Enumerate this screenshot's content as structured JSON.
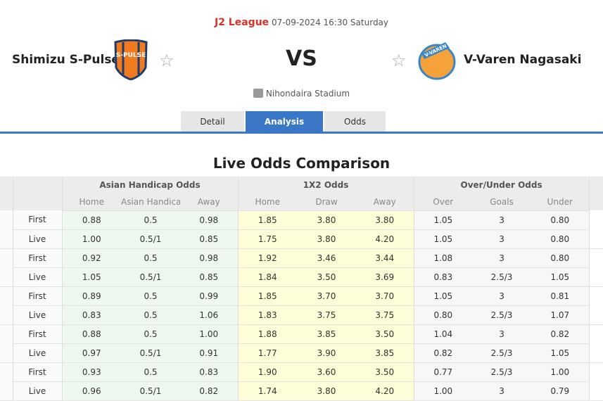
{
  "match": {
    "league": "J2 League",
    "datetime": "07-09-2024 16:30 Saturday",
    "home_team": "Shimizu S-Pulse",
    "away_team": "V-Varen Nagasaki",
    "vs": "VS",
    "venue": "Nihondaira Stadium",
    "home_logo_text": "S-PULSE",
    "away_logo_text": "V-VAREN"
  },
  "tabs": [
    {
      "label": "Detail",
      "active": false
    },
    {
      "label": "Analysis",
      "active": true
    },
    {
      "label": "Odds",
      "active": false
    }
  ],
  "section_title": "Live Odds Comparison",
  "table": {
    "groups": [
      "Asian Handicap Odds",
      "1X2 Odds",
      "Over/Under Odds"
    ],
    "subheaders": [
      "Home",
      "Asian Handicap",
      "Away",
      "Home",
      "Draw",
      "Away",
      "Over",
      "Goals",
      "Under"
    ],
    "rows": [
      [
        "First",
        "0.88",
        "0.5",
        "0.98",
        "1.85",
        "3.80",
        "3.80",
        "1.05",
        "3",
        "0.80"
      ],
      [
        "Live",
        "1.00",
        "0.5/1",
        "0.85",
        "1.75",
        "3.80",
        "4.20",
        "1.05",
        "3",
        "0.80"
      ],
      [
        "First",
        "0.92",
        "0.5",
        "0.98",
        "1.92",
        "3.46",
        "3.44",
        "1.08",
        "3",
        "0.80"
      ],
      [
        "Live",
        "1.05",
        "0.5/1",
        "0.85",
        "1.84",
        "3.50",
        "3.69",
        "0.83",
        "2.5/3",
        "1.05"
      ],
      [
        "First",
        "0.89",
        "0.5",
        "0.99",
        "1.85",
        "3.70",
        "3.70",
        "1.05",
        "3",
        "0.81"
      ],
      [
        "Live",
        "0.83",
        "0.5",
        "1.06",
        "1.83",
        "3.75",
        "3.75",
        "0.80",
        "2.5/3",
        "1.07"
      ],
      [
        "First",
        "0.88",
        "0.5",
        "1.00",
        "1.88",
        "3.85",
        "3.50",
        "1.04",
        "3",
        "0.82"
      ],
      [
        "Live",
        "0.97",
        "0.5/1",
        "0.91",
        "1.77",
        "3.90",
        "3.85",
        "0.82",
        "2.5/3",
        "1.05"
      ],
      [
        "First",
        "0.93",
        "0.5",
        "0.83",
        "1.90",
        "3.60",
        "3.50",
        "0.77",
        "2.5/3",
        "1.00"
      ],
      [
        "Live",
        "0.96",
        "0.5/1",
        "0.82",
        "1.74",
        "3.80",
        "4.20",
        "1.00",
        "3",
        "0.79"
      ]
    ]
  },
  "colors": {
    "accent": "#3a78c7",
    "league": "#d9322b",
    "ah_bg": "#eff8ef",
    "x12_bg": "#fdfdd8"
  }
}
